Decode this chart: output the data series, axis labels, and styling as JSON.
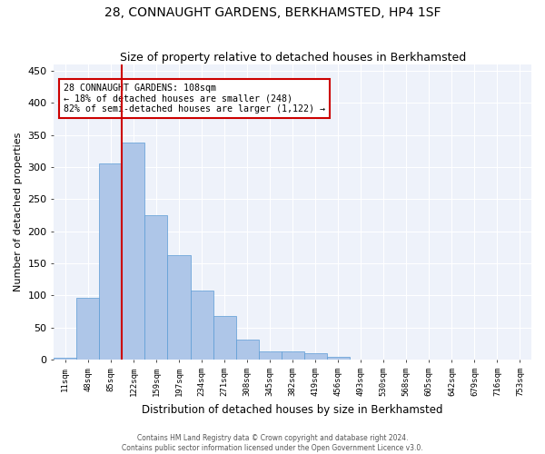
{
  "title": "28, CONNAUGHT GARDENS, BERKHAMSTED, HP4 1SF",
  "subtitle": "Size of property relative to detached houses in Berkhamsted",
  "xlabel": "Distribution of detached houses by size in Berkhamsted",
  "ylabel": "Number of detached properties",
  "bar_labels": [
    "11sqm",
    "48sqm",
    "85sqm",
    "122sqm",
    "159sqm",
    "197sqm",
    "234sqm",
    "271sqm",
    "308sqm",
    "345sqm",
    "382sqm",
    "419sqm",
    "456sqm",
    "493sqm",
    "530sqm",
    "568sqm",
    "605sqm",
    "642sqm",
    "679sqm",
    "716sqm",
    "753sqm"
  ],
  "bar_values": [
    3,
    97,
    305,
    338,
    225,
    163,
    108,
    68,
    32,
    13,
    13,
    10,
    5,
    1,
    0,
    0,
    0,
    0,
    0,
    0,
    1
  ],
  "bar_color": "#aec6e8",
  "bar_edgecolor": "#5b9bd5",
  "vline_x": 2.5,
  "vline_color": "#cc0000",
  "annotation_text": "28 CONNAUGHT GARDENS: 108sqm\n← 18% of detached houses are smaller (248)\n82% of semi-detached houses are larger (1,122) →",
  "annotation_box_edgecolor": "#cc0000",
  "annotation_box_facecolor": "#ffffff",
  "ylim": [
    0,
    460
  ],
  "yticks": [
    0,
    50,
    100,
    150,
    200,
    250,
    300,
    350,
    400,
    450
  ],
  "footer1": "Contains HM Land Registry data © Crown copyright and database right 2024.",
  "footer2": "Contains public sector information licensed under the Open Government Licence v3.0.",
  "background_color": "#eef2fa",
  "grid_color": "#ffffff",
  "title_fontsize": 10,
  "subtitle_fontsize": 9,
  "xlabel_fontsize": 8.5,
  "ylabel_fontsize": 8
}
